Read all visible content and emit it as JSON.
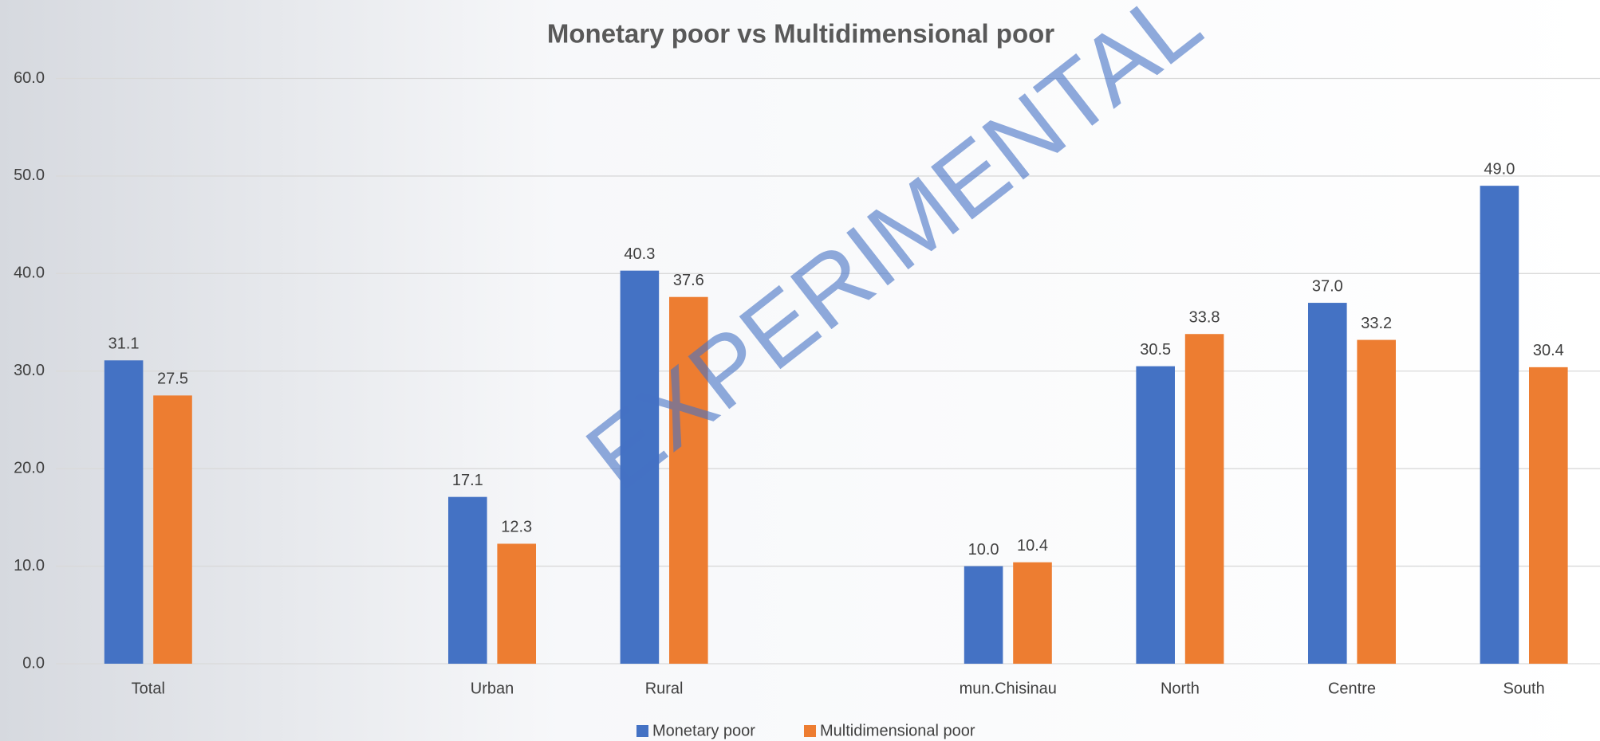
{
  "chart_data": {
    "type": "bar",
    "title": "Monetary poor vs Multidimensional poor",
    "annotation": "EXPERIMENTAL",
    "categories": [
      "Total",
      null,
      "Urban",
      "Rural",
      null,
      "mun.Chisinau",
      "North",
      "Centre",
      "South"
    ],
    "series": [
      {
        "name": "Monetary poor",
        "color": "#4472c4",
        "values": [
          31.1,
          null,
          17.1,
          40.3,
          null,
          10.0,
          30.5,
          37.0,
          49.0
        ],
        "value_labels": [
          "31.1",
          null,
          "17.1",
          "40.3",
          null,
          "10.0",
          "30.5",
          "37.0",
          "49.0"
        ]
      },
      {
        "name": "Multidimensional poor",
        "color": "#ed7d31",
        "values": [
          27.5,
          null,
          12.3,
          37.6,
          null,
          10.4,
          33.8,
          33.2,
          30.4
        ],
        "value_labels": [
          "27.5",
          null,
          "12.3",
          "37.6",
          null,
          "10.4",
          "33.8",
          "33.2",
          "30.4"
        ]
      }
    ],
    "ylim": [
      0,
      60
    ],
    "yticks": [
      {
        "value": 0,
        "label": "0.0"
      },
      {
        "value": 10,
        "label": "10.0"
      },
      {
        "value": 20,
        "label": "20.0"
      },
      {
        "value": 30,
        "label": "30.0"
      },
      {
        "value": 40,
        "label": "40.0"
      },
      {
        "value": 50,
        "label": "50.0"
      },
      {
        "value": 60,
        "label": "60.0"
      }
    ],
    "grid": true,
    "legend": "bottom"
  }
}
